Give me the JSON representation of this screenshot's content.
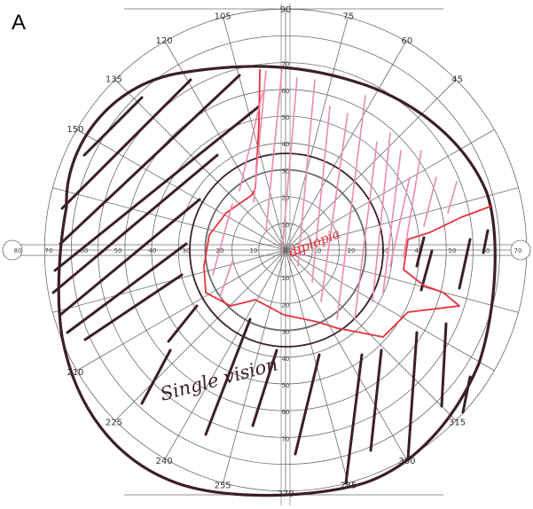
{
  "figure": {
    "panel_label": "A",
    "annotation_single": "Single vision",
    "annotation_diplopia": "diplopia"
  },
  "angle_labels": [
    {
      "text": "90",
      "deg": 90
    },
    {
      "text": "75",
      "deg": 75
    },
    {
      "text": "60",
      "deg": 60
    },
    {
      "text": "45",
      "deg": 45
    },
    {
      "text": "105",
      "deg": 105
    },
    {
      "text": "120",
      "deg": 120
    },
    {
      "text": "135",
      "deg": 135
    },
    {
      "text": "150",
      "deg": 150
    },
    {
      "text": "210",
      "deg": 210
    },
    {
      "text": "225",
      "deg": 225
    },
    {
      "text": "240",
      "deg": 240
    },
    {
      "text": "255",
      "deg": 255
    },
    {
      "text": "270",
      "deg": 270
    },
    {
      "text": "285",
      "deg": 285
    },
    {
      "text": "300",
      "deg": 300
    },
    {
      "text": "315",
      "deg": 315
    }
  ],
  "radial_labels": [
    "10",
    "20",
    "30",
    "40",
    "50",
    "60",
    "70"
  ],
  "horizontal_labels": [
    "80",
    "70",
    "60",
    "50",
    "40",
    "30",
    "20",
    "10",
    "10",
    "20",
    "30",
    "40",
    "50",
    "60",
    "70"
  ],
  "colors": {
    "grid": "#6b6b6b",
    "ink": "#3a1f2a",
    "red": "#e8303e",
    "pink": "#ec8aa6"
  }
}
